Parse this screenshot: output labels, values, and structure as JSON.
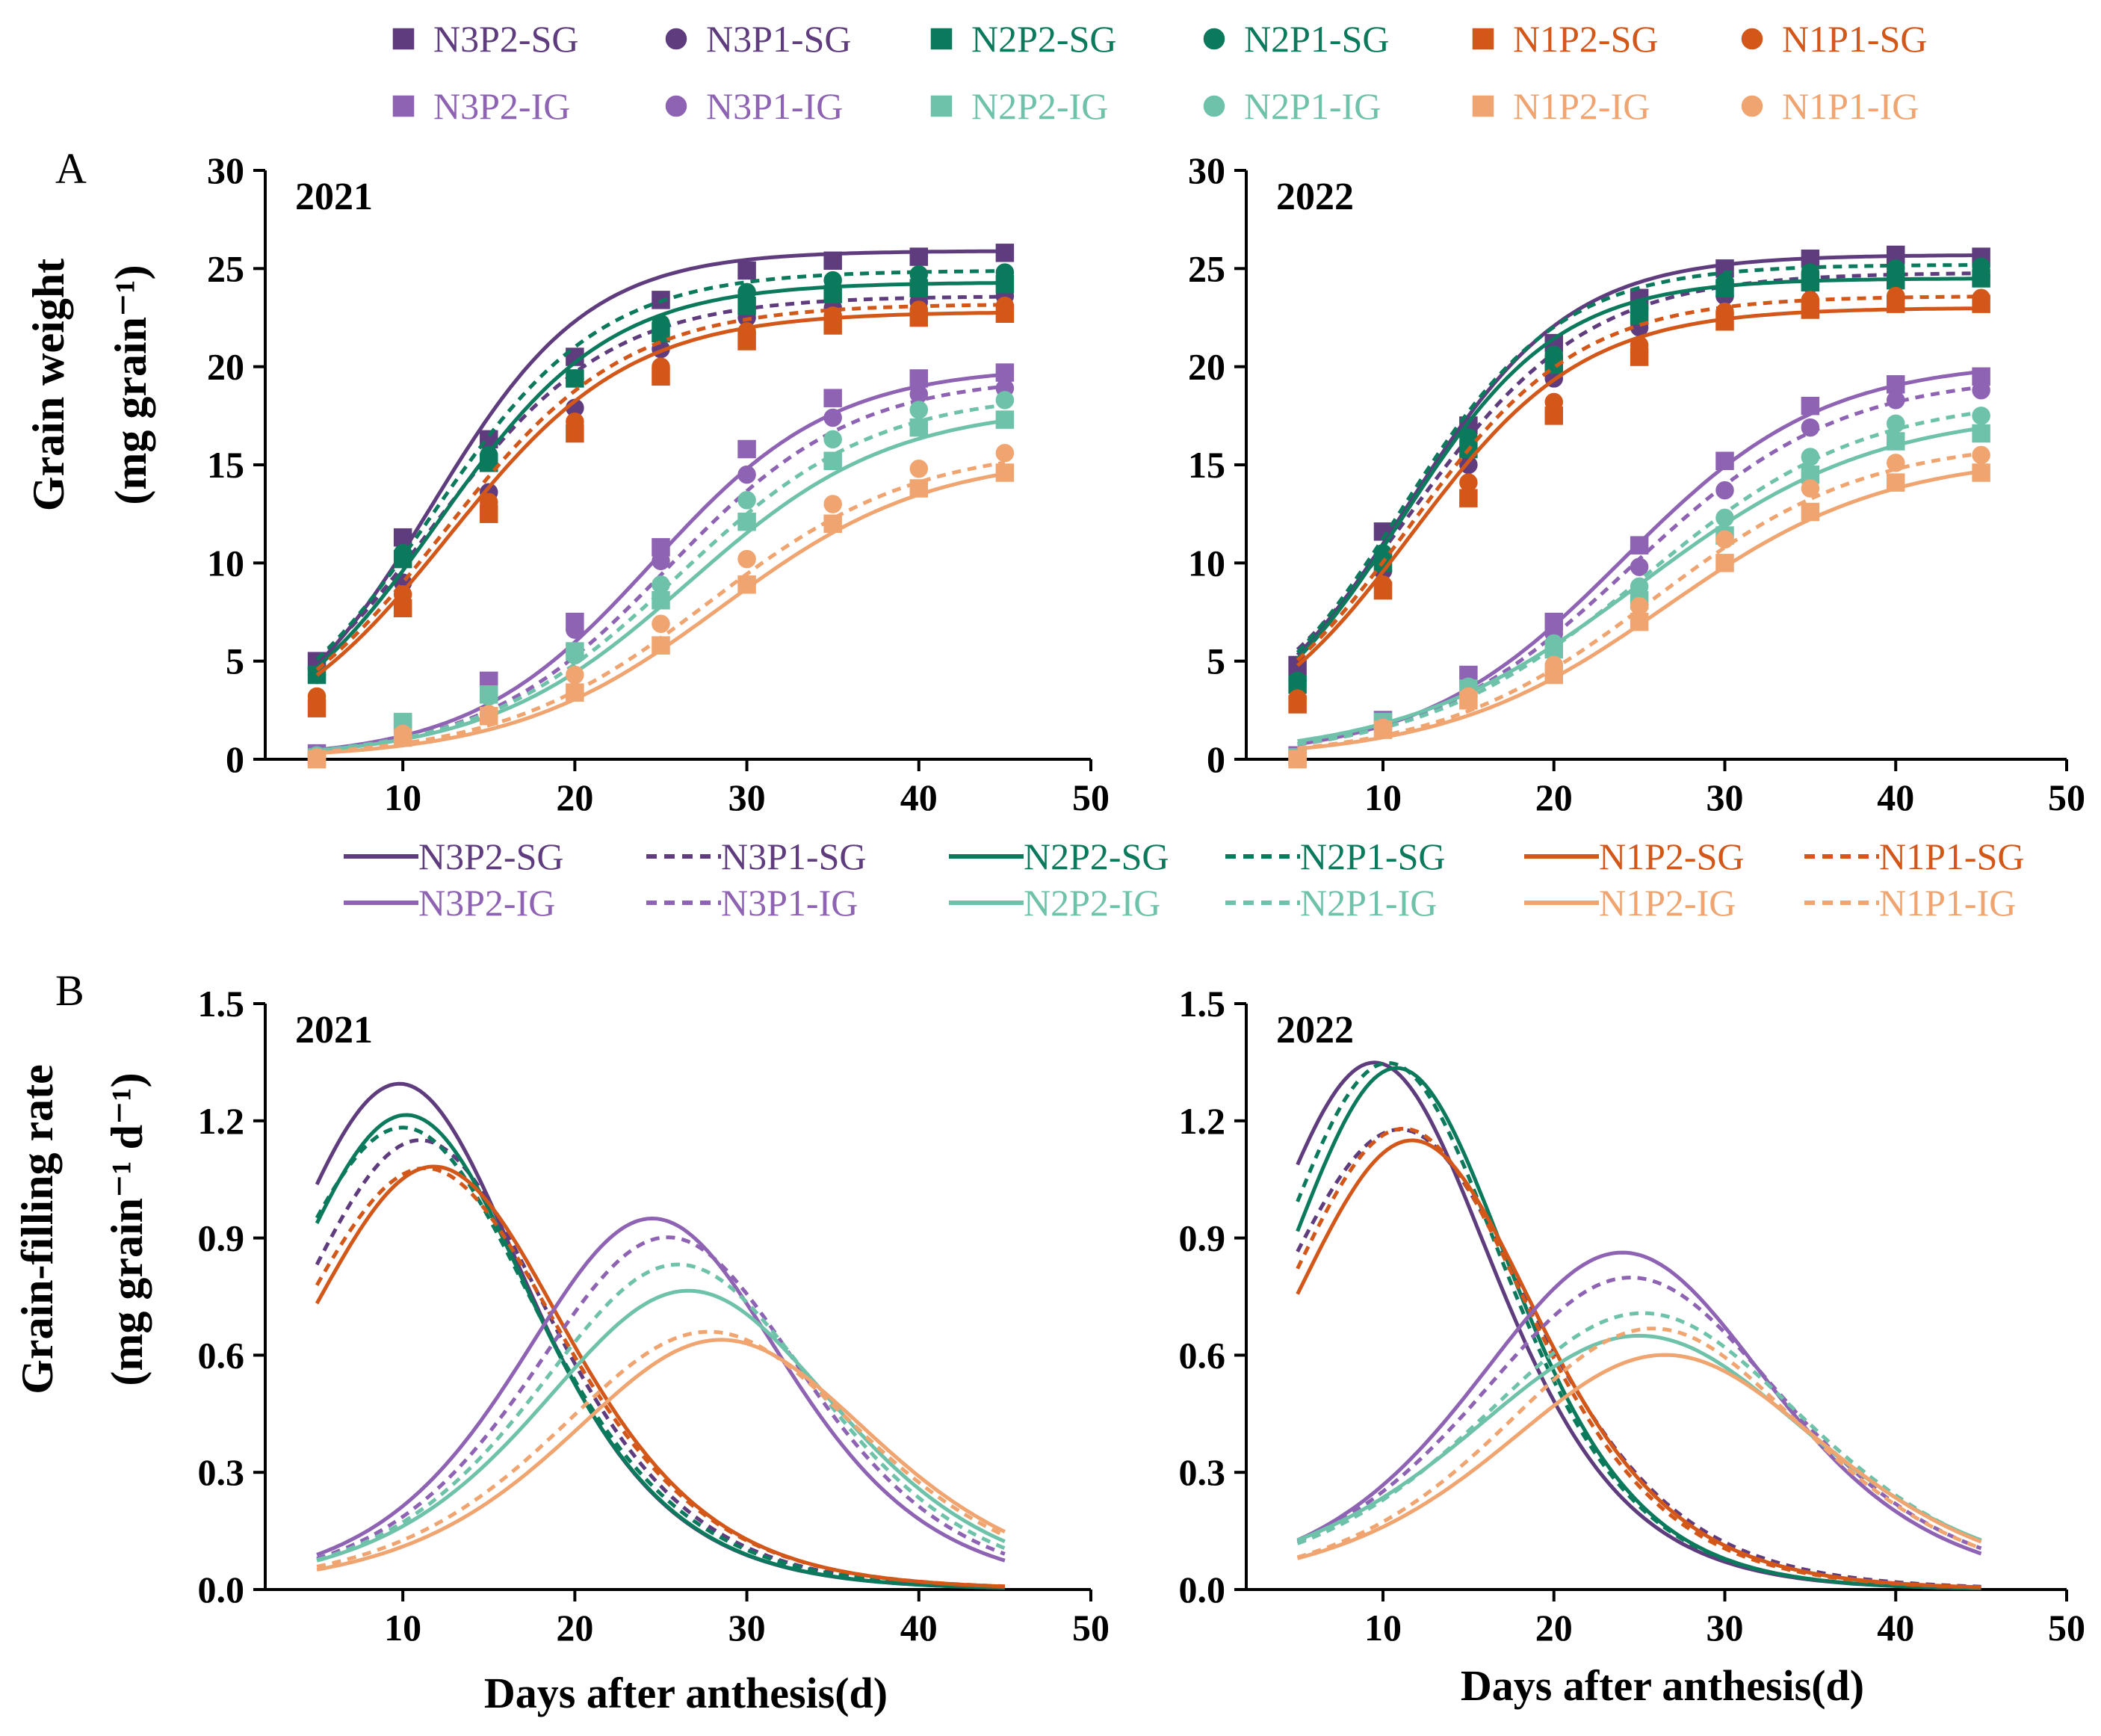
{
  "figure": {
    "panel_a_letter": "A",
    "panel_b_letter": "B",
    "y_label_a_line1": "Grain weight",
    "y_label_a_line2": "(mg grain⁻¹)",
    "y_label_b_line1": "Grain-filling rate",
    "y_label_b_line2": "(mg grain⁻¹ d⁻¹)",
    "x_label": "Days after anthesis(d)"
  },
  "legend_a": [
    {
      "label": "N3P2-SG",
      "series": "N3P2-SG"
    },
    {
      "label": "N3P1-SG",
      "series": "N3P1-SG"
    },
    {
      "label": "N2P2-SG",
      "series": "N2P2-SG"
    },
    {
      "label": "N2P1-SG",
      "series": "N2P1-SG"
    },
    {
      "label": "N1P2-SG",
      "series": "N1P2-SG"
    },
    {
      "label": "N1P1-SG",
      "series": "N1P1-SG"
    },
    {
      "label": "N3P2-IG",
      "series": "N3P2-IG"
    },
    {
      "label": "N3P1-IG",
      "series": "N3P1-IG"
    },
    {
      "label": "N2P2-IG",
      "series": "N2P2-IG"
    },
    {
      "label": "N2P1-IG",
      "series": "N2P1-IG"
    },
    {
      "label": "N1P2-IG",
      "series": "N1P2-IG"
    },
    {
      "label": "N1P1-IG",
      "series": "N1P1-IG"
    }
  ],
  "legend_b": [
    {
      "label": "N3P2-SG",
      "series": "N3P2-SG"
    },
    {
      "label": "N3P1-SG",
      "series": "N3P1-SG"
    },
    {
      "label": "N2P2-SG",
      "series": "N2P2-SG"
    },
    {
      "label": "N2P1-SG",
      "series": "N2P1-SG"
    },
    {
      "label": "N1P2-SG",
      "series": "N1P2-SG"
    },
    {
      "label": "N1P1-SG",
      "series": "N1P1-SG"
    },
    {
      "label": "N3P2-IG",
      "series": "N3P2-IG"
    },
    {
      "label": "N3P1-IG",
      "series": "N3P1-IG"
    },
    {
      "label": "N2P2-IG",
      "series": "N2P2-IG"
    },
    {
      "label": "N2P1-IG",
      "series": "N2P1-IG"
    },
    {
      "label": "N1P2-IG",
      "series": "N1P2-IG"
    },
    {
      "label": "N1P1-IG",
      "series": "N1P1-IG"
    }
  ],
  "series_style": {
    "N3P2-SG": {
      "color": "#5e3c7e",
      "marker": "square",
      "filled": true,
      "dash": false
    },
    "N3P1-SG": {
      "color": "#5e3c7e",
      "marker": "circle",
      "filled": true,
      "dash": true
    },
    "N2P2-SG": {
      "color": "#0b7a5c",
      "marker": "square",
      "filled": true,
      "dash": false
    },
    "N2P1-SG": {
      "color": "#0b7a5c",
      "marker": "circle",
      "filled": true,
      "dash": true
    },
    "N1P2-SG": {
      "color": "#d4571a",
      "marker": "square",
      "filled": true,
      "dash": false
    },
    "N1P1-SG": {
      "color": "#d4571a",
      "marker": "circle",
      "filled": true,
      "dash": true
    },
    "N3P2-IG": {
      "color": "#8e63b3",
      "marker": "square",
      "filled": true,
      "dash": false
    },
    "N3P1-IG": {
      "color": "#8e63b3",
      "marker": "circle",
      "filled": true,
      "dash": true
    },
    "N2P2-IG": {
      "color": "#6fc2aa",
      "marker": "square",
      "filled": true,
      "dash": false
    },
    "N2P1-IG": {
      "color": "#6fc2aa",
      "marker": "circle",
      "filled": true,
      "dash": true
    },
    "N1P2-IG": {
      "color": "#f0a470",
      "marker": "square",
      "filled": true,
      "dash": false
    },
    "N1P1-IG": {
      "color": "#f0a470",
      "marker": "circle",
      "filled": true,
      "dash": true
    }
  },
  "chart_data": [
    {
      "id": "A-2021",
      "type": "scatter",
      "panel": "A",
      "title": "2021",
      "xlabel": "",
      "ylabel": "Grain weight (mg grain⁻¹)",
      "xlim": [
        2,
        50
      ],
      "ylim": [
        0,
        30
      ],
      "xticks": [
        10,
        20,
        30,
        40,
        50
      ],
      "yticks": [
        0,
        5,
        10,
        15,
        20,
        25,
        30
      ],
      "x": [
        5,
        10,
        15,
        20,
        25,
        30,
        35,
        40,
        45
      ],
      "series": [
        {
          "name": "N3P2-SG",
          "points": [
            5.0,
            11.3,
            16.3,
            20.5,
            23.4,
            24.9,
            25.4,
            25.6,
            25.8
          ],
          "fit": {
            "A": 25.9,
            "k": 0.22,
            "t0": 11.7
          }
        },
        {
          "name": "N3P1-SG",
          "points": [
            4.6,
            9.0,
            13.6,
            17.9,
            20.9,
            22.5,
            23.0,
            23.3,
            23.6
          ],
          "fit": {
            "A": 23.6,
            "k": 0.195,
            "t0": 11.7
          }
        },
        {
          "name": "N2P2-SG",
          "points": [
            4.3,
            10.2,
            15.1,
            19.4,
            21.7,
            23.1,
            23.7,
            24.0,
            24.2
          ],
          "fit": {
            "A": 24.3,
            "k": 0.202,
            "t0": 12.1
          }
        },
        {
          "name": "N2P1-SG",
          "points": [
            4.3,
            10.5,
            15.5,
            19.4,
            22.2,
            23.8,
            24.4,
            24.7,
            24.8
          ],
          "fit": {
            "A": 24.9,
            "k": 0.203,
            "t0": 11.7
          }
        },
        {
          "name": "N1P2-SG",
          "points": [
            2.6,
            7.7,
            12.5,
            16.6,
            19.5,
            21.3,
            22.1,
            22.5,
            22.7
          ],
          "fit": {
            "A": 22.8,
            "k": 0.19,
            "t0": 12.7
          }
        },
        {
          "name": "N1P1-SG",
          "points": [
            3.2,
            8.4,
            13.1,
            17.2,
            20.0,
            21.8,
            22.6,
            22.9,
            23.1
          ],
          "fit": {
            "A": 23.2,
            "k": 0.19,
            "t0": 12.4
          }
        },
        {
          "name": "N3P2-IG",
          "points": [
            0.3,
            1.8,
            4.0,
            7.0,
            10.8,
            15.8,
            18.4,
            19.4,
            19.7
          ],
          "fit": {
            "A": 20.0,
            "k": 0.19,
            "t0": 24.5
          }
        },
        {
          "name": "N3P1-IG",
          "points": [
            0.2,
            1.6,
            3.3,
            6.6,
            10.1,
            14.5,
            17.4,
            18.6,
            18.9
          ],
          "fit": {
            "A": 19.5,
            "k": 0.185,
            "t0": 25.4
          }
        },
        {
          "name": "N2P2-IG",
          "points": [
            0.1,
            1.9,
            3.3,
            5.5,
            8.1,
            12.1,
            15.2,
            16.9,
            17.3
          ],
          "fit": {
            "A": 18.0,
            "k": 0.17,
            "t0": 26.6
          }
        },
        {
          "name": "N2P1-IG",
          "points": [
            0.2,
            1.9,
            3.2,
            5.3,
            8.9,
            13.2,
            16.3,
            17.8,
            18.3
          ],
          "fit": {
            "A": 18.7,
            "k": 0.175,
            "t0": 26.0
          }
        },
        {
          "name": "N1P2-IG",
          "points": [
            0.0,
            1.1,
            2.2,
            3.4,
            5.8,
            8.9,
            12.0,
            13.8,
            14.6
          ],
          "fit": {
            "A": 15.5,
            "k": 0.165,
            "t0": 28.5
          }
        },
        {
          "name": "N1P1-IG",
          "points": [
            0.1,
            1.3,
            2.3,
            4.3,
            6.9,
            10.2,
            13.0,
            14.8,
            15.6
          ],
          "fit": {
            "A": 16.0,
            "k": 0.165,
            "t0": 27.8
          }
        }
      ]
    },
    {
      "id": "A-2022",
      "type": "scatter",
      "panel": "A",
      "title": "2022",
      "xlabel": "",
      "ylabel": "",
      "xlim": [
        2,
        50
      ],
      "ylim": [
        0,
        30
      ],
      "xticks": [
        10,
        20,
        30,
        40,
        50
      ],
      "yticks": [
        0,
        5,
        10,
        15,
        20,
        25,
        30
      ],
      "x": [
        5,
        10,
        15,
        20,
        25,
        30,
        35,
        40,
        45
      ],
      "series": [
        {
          "name": "N3P2-SG",
          "points": [
            4.8,
            11.6,
            17.0,
            21.2,
            23.5,
            25.0,
            25.5,
            25.7,
            25.6
          ],
          "fit": {
            "A": 25.7,
            "k": 0.21,
            "t0": 11.4
          }
        },
        {
          "name": "N3P1-SG",
          "points": [
            4.3,
            9.6,
            15.0,
            19.4,
            22.0,
            23.6,
            24.2,
            24.5,
            24.6
          ],
          "fit": {
            "A": 24.8,
            "k": 0.19,
            "t0": 11.5
          }
        },
        {
          "name": "N2P2-SG",
          "points": [
            3.8,
            10.0,
            15.8,
            20.1,
            22.6,
            24.0,
            24.3,
            24.4,
            24.5
          ],
          "fit": {
            "A": 24.5,
            "k": 0.218,
            "t0": 11.1
          }
        },
        {
          "name": "N2P1-SG",
          "points": [
            4.0,
            10.5,
            16.4,
            20.6,
            23.0,
            24.3,
            24.8,
            25.0,
            25.1
          ],
          "fit": {
            "A": 25.2,
            "k": 0.215,
            "t0": 11.0
          }
        },
        {
          "name": "N1P2-SG",
          "points": [
            2.8,
            8.6,
            13.3,
            17.5,
            20.5,
            22.3,
            22.9,
            23.2,
            23.2
          ],
          "fit": {
            "A": 23.0,
            "k": 0.2,
            "t0": 11.7
          }
        },
        {
          "name": "N1P1-SG",
          "points": [
            3.1,
            8.9,
            14.1,
            18.2,
            21.1,
            22.8,
            23.4,
            23.6,
            23.5
          ],
          "fit": {
            "A": 23.6,
            "k": 0.2,
            "t0": 11.5
          }
        },
        {
          "name": "N3P2-IG",
          "points": [
            0.2,
            2.0,
            4.3,
            7.0,
            10.9,
            15.2,
            18.0,
            19.1,
            19.5
          ],
          "fit": {
            "A": 20.3,
            "k": 0.17,
            "t0": 24.0
          }
        },
        {
          "name": "N3P1-IG",
          "points": [
            0.1,
            1.7,
            3.9,
            6.4,
            9.8,
            13.7,
            16.9,
            18.3,
            18.8
          ],
          "fit": {
            "A": 19.6,
            "k": 0.165,
            "t0": 24.5
          }
        },
        {
          "name": "N2P2-IG",
          "points": [
            0.1,
            1.9,
            3.6,
            5.6,
            8.1,
            11.4,
            14.5,
            16.2,
            16.6
          ],
          "fit": {
            "A": 17.8,
            "k": 0.145,
            "t0": 25.0
          }
        },
        {
          "name": "N2P1-IG",
          "points": [
            0.1,
            1.8,
            3.7,
            5.9,
            8.8,
            12.3,
            15.4,
            17.1,
            17.5
          ],
          "fit": {
            "A": 18.5,
            "k": 0.155,
            "t0": 25.2
          }
        },
        {
          "name": "N1P2-IG",
          "points": [
            0.0,
            1.5,
            3.0,
            4.3,
            7.0,
            10.0,
            12.6,
            14.1,
            14.6
          ],
          "fit": {
            "A": 15.5,
            "k": 0.155,
            "t0": 26.5
          }
        },
        {
          "name": "N1P1-IG",
          "points": [
            0.0,
            1.6,
            3.2,
            4.8,
            7.8,
            11.2,
            13.8,
            15.1,
            15.5
          ],
          "fit": {
            "A": 16.3,
            "k": 0.16,
            "t0": 25.8
          }
        }
      ]
    },
    {
      "id": "B-2021",
      "type": "line",
      "panel": "B",
      "title": "2021",
      "xlabel": "Days after anthesis(d)",
      "ylabel": "Grain-filling rate (mg grain⁻¹ d⁻¹)",
      "xlim": [
        2,
        50
      ],
      "ylim": [
        0,
        1.5
      ],
      "x_range": [
        5,
        45
      ],
      "xticks": [
        10,
        20,
        30,
        40,
        50
      ],
      "yticks": [
        0.0,
        0.3,
        0.6,
        0.9,
        1.2,
        1.5
      ],
      "series": [
        {
          "name": "N3P2-SG",
          "peak": 1.31,
          "peak_day": 9.8,
          "fit": {
            "A": 25.9,
            "k": 0.2,
            "t0": 9.8
          }
        },
        {
          "name": "N3P1-SG",
          "peak": 1.15,
          "peak_day": 11.0,
          "fit": {
            "A": 23.6,
            "k": 0.195,
            "t0": 11.0
          }
        },
        {
          "name": "N2P2-SG",
          "peak": 1.22,
          "peak_day": 10.2,
          "fit": {
            "A": 24.3,
            "k": 0.2,
            "t0": 10.2
          }
        },
        {
          "name": "N2P1-SG",
          "peak": 1.18,
          "peak_day": 10.0,
          "fit": {
            "A": 24.9,
            "k": 0.19,
            "t0": 10.0
          }
        },
        {
          "name": "N1P2-SG",
          "peak": 1.08,
          "peak_day": 11.8,
          "fit": {
            "A": 22.8,
            "k": 0.19,
            "t0": 11.8
          }
        },
        {
          "name": "N1P1-SG",
          "peak": 1.08,
          "peak_day": 11.3,
          "fit": {
            "A": 23.2,
            "k": 0.186,
            "t0": 11.3
          }
        },
        {
          "name": "N3P2-IG",
          "peak": 0.95,
          "peak_day": 24.5,
          "fit": {
            "A": 20.0,
            "k": 0.19,
            "t0": 24.5
          }
        },
        {
          "name": "N3P1-IG",
          "peak": 0.9,
          "peak_day": 25.4,
          "fit": {
            "A": 19.5,
            "k": 0.185,
            "t0": 25.4
          }
        },
        {
          "name": "N2P2-IG",
          "peak": 0.76,
          "peak_day": 26.6,
          "fit": {
            "A": 18.0,
            "k": 0.17,
            "t0": 26.6
          }
        },
        {
          "name": "N2P1-IG",
          "peak": 0.83,
          "peak_day": 26.0,
          "fit": {
            "A": 18.7,
            "k": 0.178,
            "t0": 26.0
          }
        },
        {
          "name": "N1P2-IG",
          "peak": 0.64,
          "peak_day": 28.5,
          "fit": {
            "A": 15.5,
            "k": 0.165,
            "t0": 28.5
          }
        },
        {
          "name": "N1P1-IG",
          "peak": 0.66,
          "peak_day": 27.8,
          "fit": {
            "A": 16.0,
            "k": 0.165,
            "t0": 27.8
          }
        }
      ]
    },
    {
      "id": "B-2022",
      "type": "line",
      "panel": "B",
      "title": "2022",
      "xlabel": "Days after anthesis(d)",
      "ylabel": "",
      "xlim": [
        2,
        50
      ],
      "ylim": [
        0,
        1.5
      ],
      "x_range": [
        5,
        45
      ],
      "xticks": [
        10,
        20,
        30,
        40,
        50
      ],
      "yticks": [
        0.0,
        0.3,
        0.6,
        0.9,
        1.2,
        1.5
      ],
      "series": [
        {
          "name": "N3P2-SG",
          "peak": 1.35,
          "peak_day": 9.5,
          "fit": {
            "A": 25.7,
            "k": 0.21,
            "t0": 9.5
          }
        },
        {
          "name": "N3P1-SG",
          "peak": 1.18,
          "peak_day": 11.0,
          "fit": {
            "A": 24.8,
            "k": 0.19,
            "t0": 11.0
          }
        },
        {
          "name": "N2P2-SG",
          "peak": 1.34,
          "peak_day": 10.8,
          "fit": {
            "A": 24.5,
            "k": 0.218,
            "t0": 10.8
          }
        },
        {
          "name": "N2P1-SG",
          "peak": 1.35,
          "peak_day": 10.3,
          "fit": {
            "A": 25.2,
            "k": 0.214,
            "t0": 10.3
          }
        },
        {
          "name": "N1P2-SG",
          "peak": 1.15,
          "peak_day": 11.7,
          "fit": {
            "A": 23.0,
            "k": 0.2,
            "t0": 11.7
          }
        },
        {
          "name": "N1P1-SG",
          "peak": 1.18,
          "peak_day": 11.2,
          "fit": {
            "A": 23.6,
            "k": 0.2,
            "t0": 11.2
          }
        },
        {
          "name": "N3P2-IG",
          "peak": 0.86,
          "peak_day": 24.0,
          "fit": {
            "A": 20.3,
            "k": 0.17,
            "t0": 24.0
          }
        },
        {
          "name": "N3P1-IG",
          "peak": 0.8,
          "peak_day": 24.5,
          "fit": {
            "A": 19.6,
            "k": 0.163,
            "t0": 24.5
          }
        },
        {
          "name": "N2P2-IG",
          "peak": 0.65,
          "peak_day": 25.0,
          "fit": {
            "A": 17.8,
            "k": 0.146,
            "t0": 25.0
          }
        },
        {
          "name": "N2P1-IG",
          "peak": 0.71,
          "peak_day": 25.2,
          "fit": {
            "A": 18.5,
            "k": 0.153,
            "t0": 25.2
          }
        },
        {
          "name": "N1P2-IG",
          "peak": 0.6,
          "peak_day": 26.5,
          "fit": {
            "A": 15.5,
            "k": 0.155,
            "t0": 26.5
          }
        },
        {
          "name": "N1P1-IG",
          "peak": 0.67,
          "peak_day": 25.8,
          "fit": {
            "A": 16.3,
            "k": 0.164,
            "t0": 25.8
          }
        }
      ]
    }
  ]
}
